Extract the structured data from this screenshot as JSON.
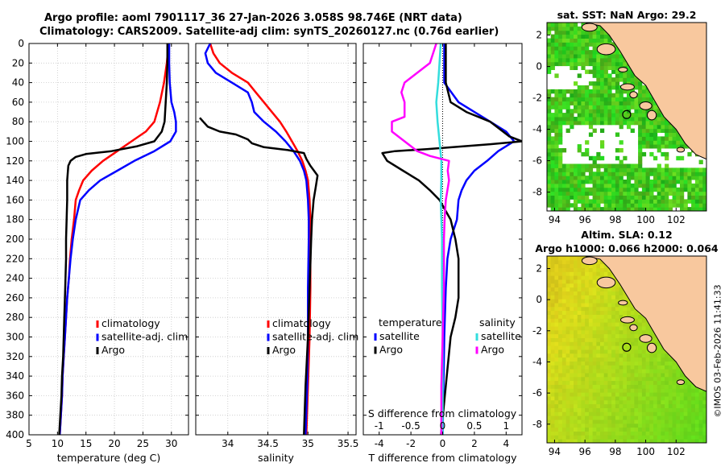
{
  "header": {
    "line1": "Argo profile: aoml 7901117_36 27-Jan-2026 3.058S 98.746E (NRT data)",
    "line2": "Climatology: CARS2009. Satellite-adj clim: synTS_20260127.nc (0.76d earlier)"
  },
  "colors": {
    "climatology": "#ff0000",
    "satellite": "#0000ff",
    "argo": "#000000",
    "sat_salinity": "#33dddd",
    "argo_salinity_diff": "#ff00ff",
    "land": "#f8c89e",
    "sst_cell": "#33cc33",
    "sla_cell": "#66dd33",
    "coast": "#000000"
  },
  "chart_data": [
    {
      "name": "temperature-panel",
      "type": "line",
      "xlabel": "temperature (deg C)",
      "ylabel": "",
      "xlim": [
        5,
        33
      ],
      "ylim": [
        400,
        0
      ],
      "xticks": [
        5,
        10,
        15,
        20,
        25,
        30
      ],
      "yticks": [
        0,
        20,
        40,
        60,
        80,
        100,
        120,
        140,
        160,
        180,
        200,
        220,
        240,
        260,
        280,
        300,
        320,
        340,
        360,
        380,
        400
      ],
      "grid": true,
      "legend_position": "bottom-right",
      "series": [
        {
          "name": "climatology",
          "color": "#ff0000",
          "points": [
            [
              29.5,
              0
            ],
            [
              29.2,
              20
            ],
            [
              28.7,
              40
            ],
            [
              28.0,
              60
            ],
            [
              27.0,
              80
            ],
            [
              25.5,
              90
            ],
            [
              23.0,
              100
            ],
            [
              20.5,
              110
            ],
            [
              18.0,
              120
            ],
            [
              16.0,
              130
            ],
            [
              14.5,
              140
            ],
            [
              13.8,
              150
            ],
            [
              13.2,
              160
            ],
            [
              12.9,
              180
            ],
            [
              12.5,
              200
            ],
            [
              12.2,
              220
            ],
            [
              12.0,
              240
            ],
            [
              11.7,
              260
            ],
            [
              11.5,
              280
            ],
            [
              11.3,
              300
            ],
            [
              11.1,
              320
            ],
            [
              10.9,
              340
            ],
            [
              10.8,
              360
            ],
            [
              10.6,
              380
            ],
            [
              10.4,
              400
            ]
          ]
        },
        {
          "name": "satellite-adj. clim",
          "color": "#0000ff",
          "points": [
            [
              29.6,
              0
            ],
            [
              29.6,
              20
            ],
            [
              29.7,
              40
            ],
            [
              30.0,
              60
            ],
            [
              30.5,
              70
            ],
            [
              30.8,
              80
            ],
            [
              30.8,
              90
            ],
            [
              29.8,
              100
            ],
            [
              27.0,
              110
            ],
            [
              23.5,
              120
            ],
            [
              20.5,
              130
            ],
            [
              17.5,
              140
            ],
            [
              15.5,
              150
            ],
            [
              14.0,
              160
            ],
            [
              13.2,
              180
            ],
            [
              12.7,
              200
            ],
            [
              12.3,
              220
            ],
            [
              12.0,
              240
            ],
            [
              11.7,
              260
            ],
            [
              11.5,
              280
            ],
            [
              11.3,
              300
            ],
            [
              11.1,
              320
            ],
            [
              10.9,
              340
            ],
            [
              10.8,
              360
            ],
            [
              10.6,
              380
            ],
            [
              10.4,
              400
            ]
          ]
        },
        {
          "name": "Argo",
          "color": "#000000",
          "points": [
            [
              29.3,
              0
            ],
            [
              29.3,
              20
            ],
            [
              29.2,
              40
            ],
            [
              29.0,
              60
            ],
            [
              28.8,
              80
            ],
            [
              28.3,
              90
            ],
            [
              27.0,
              100
            ],
            [
              24.0,
              105
            ],
            [
              19.5,
              110
            ],
            [
              15.0,
              113
            ],
            [
              13.2,
              116
            ],
            [
              12.3,
              120
            ],
            [
              11.9,
              125
            ],
            [
              11.7,
              140
            ],
            [
              11.7,
              160
            ],
            [
              11.6,
              180
            ],
            [
              11.5,
              200
            ],
            [
              11.5,
              220
            ],
            [
              11.4,
              240
            ],
            [
              11.3,
              260
            ],
            [
              11.2,
              280
            ],
            [
              11.1,
              300
            ],
            [
              11.0,
              320
            ],
            [
              10.8,
              340
            ],
            [
              10.7,
              360
            ],
            [
              10.5,
              380
            ],
            [
              10.3,
              400
            ]
          ]
        }
      ]
    },
    {
      "name": "salinity-panel",
      "type": "line",
      "xlabel": "salinity",
      "xlim": [
        33.6,
        35.6
      ],
      "ylim": [
        400,
        0
      ],
      "xticks": [
        34,
        34.5,
        35,
        35.5
      ],
      "grid": true,
      "legend_position": "bottom-right",
      "series": [
        {
          "name": "climatology",
          "color": "#ff0000",
          "points": [
            [
              33.78,
              0
            ],
            [
              33.82,
              10
            ],
            [
              33.9,
              20
            ],
            [
              34.05,
              30
            ],
            [
              34.25,
              40
            ],
            [
              34.35,
              50
            ],
            [
              34.45,
              60
            ],
            [
              34.55,
              70
            ],
            [
              34.65,
              80
            ],
            [
              34.73,
              90
            ],
            [
              34.8,
              100
            ],
            [
              34.87,
              110
            ],
            [
              34.93,
              120
            ],
            [
              34.97,
              130
            ],
            [
              35.0,
              140
            ],
            [
              35.02,
              160
            ],
            [
              35.03,
              180
            ],
            [
              35.03,
              200
            ],
            [
              35.03,
              250
            ],
            [
              35.02,
              300
            ],
            [
              35.0,
              350
            ],
            [
              34.98,
              400
            ]
          ]
        },
        {
          "name": "satellite-adj. clim",
          "color": "#0000ff",
          "points": [
            [
              33.78,
              0
            ],
            [
              33.72,
              10
            ],
            [
              33.75,
              20
            ],
            [
              33.85,
              30
            ],
            [
              34.05,
              40
            ],
            [
              34.25,
              50
            ],
            [
              34.3,
              60
            ],
            [
              34.33,
              70
            ],
            [
              34.45,
              80
            ],
            [
              34.6,
              90
            ],
            [
              34.72,
              100
            ],
            [
              34.82,
              110
            ],
            [
              34.9,
              120
            ],
            [
              34.95,
              130
            ],
            [
              34.98,
              140
            ],
            [
              35.0,
              160
            ],
            [
              35.01,
              180
            ],
            [
              35.01,
              200
            ],
            [
              35.0,
              250
            ],
            [
              35.0,
              300
            ],
            [
              34.99,
              350
            ],
            [
              34.97,
              400
            ]
          ]
        },
        {
          "name": "Argo",
          "color": "#000000",
          "points": [
            [
              33.65,
              76
            ],
            [
              33.75,
              85
            ],
            [
              33.9,
              90
            ],
            [
              34.1,
              93
            ],
            [
              34.25,
              98
            ],
            [
              34.3,
              102
            ],
            [
              34.45,
              106
            ],
            [
              34.75,
              109
            ],
            [
              34.95,
              112
            ],
            [
              34.98,
              118
            ],
            [
              35.03,
              125
            ],
            [
              35.12,
              135
            ],
            [
              35.1,
              145
            ],
            [
              35.07,
              160
            ],
            [
              35.05,
              180
            ],
            [
              35.04,
              200
            ],
            [
              35.02,
              250
            ],
            [
              35.0,
              300
            ],
            [
              34.97,
              350
            ],
            [
              34.95,
              400
            ]
          ]
        }
      ]
    },
    {
      "name": "difference-panel",
      "type": "line",
      "xlabel": "T difference from climatology",
      "top_xlabel": "S difference from climatology",
      "xlim": [
        -5,
        5
      ],
      "top_xlim": [
        -1.25,
        1.25
      ],
      "ylim": [
        400,
        0
      ],
      "xticks": [
        -4,
        -2,
        0,
        2,
        4
      ],
      "top_xticks": [
        -1,
        -0.5,
        0,
        0.5,
        1
      ],
      "top_xticklabels": [
        "-1",
        "-0.5",
        "0",
        "0.5",
        "1"
      ],
      "grid": false,
      "legend_left_title": "temperature",
      "legend_right_title": "salinity",
      "series": [
        {
          "name": "satellite",
          "group": "temperature",
          "color": "#0000ff",
          "points": [
            [
              0.1,
              0
            ],
            [
              0.1,
              20
            ],
            [
              0.1,
              40
            ],
            [
              1.0,
              60
            ],
            [
              2.0,
              70
            ],
            [
              3.0,
              80
            ],
            [
              4.0,
              90
            ],
            [
              4.5,
              100
            ],
            [
              3.5,
              110
            ],
            [
              2.8,
              120
            ],
            [
              2.0,
              130
            ],
            [
              1.5,
              140
            ],
            [
              1.2,
              150
            ],
            [
              1.0,
              160
            ],
            [
              0.9,
              180
            ],
            [
              0.5,
              200
            ],
            [
              0.3,
              220
            ],
            [
              0.2,
              250
            ],
            [
              0.1,
              300
            ],
            [
              0.05,
              350
            ],
            [
              0.0,
              400
            ]
          ]
        },
        {
          "name": "Argo",
          "group": "temperature",
          "color": "#000000",
          "points": [
            [
              0.2,
              0
            ],
            [
              0.2,
              40
            ],
            [
              0.5,
              60
            ],
            [
              1.5,
              70
            ],
            [
              3.0,
              80
            ],
            [
              3.8,
              90
            ],
            [
              4.2,
              95
            ],
            [
              5.0,
              100
            ],
            [
              3.0,
              103
            ],
            [
              -1.0,
              108
            ],
            [
              -3.0,
              110
            ],
            [
              -3.8,
              112
            ],
            [
              -3.5,
              120
            ],
            [
              -2.5,
              130
            ],
            [
              -1.5,
              140
            ],
            [
              -0.8,
              150
            ],
            [
              -0.2,
              160
            ],
            [
              0.5,
              180
            ],
            [
              0.8,
              200
            ],
            [
              1.0,
              220
            ],
            [
              1.0,
              240
            ],
            [
              1.0,
              260
            ],
            [
              0.8,
              280
            ],
            [
              0.5,
              300
            ],
            [
              0.2,
              350
            ],
            [
              -0.1,
              400
            ]
          ]
        },
        {
          "name": "satellite",
          "group": "salinity",
          "color": "#33dddd",
          "points": [
            [
              -0.03,
              0
            ],
            [
              -0.05,
              20
            ],
            [
              -0.07,
              40
            ],
            [
              -0.1,
              60
            ],
            [
              -0.08,
              80
            ],
            [
              -0.05,
              100
            ],
            [
              -0.02,
              120
            ],
            [
              -0.02,
              140
            ],
            [
              -0.03,
              160
            ],
            [
              -0.02,
              180
            ],
            [
              -0.01,
              200
            ],
            [
              -0.01,
              250
            ],
            [
              0.0,
              300
            ],
            [
              0.0,
              400
            ]
          ]
        },
        {
          "name": "Argo",
          "group": "salinity",
          "color": "#ff00ff",
          "points": [
            [
              -0.1,
              0
            ],
            [
              -0.2,
              20
            ],
            [
              -0.4,
              30
            ],
            [
              -0.6,
              40
            ],
            [
              -0.65,
              50
            ],
            [
              -0.6,
              60
            ],
            [
              -0.6,
              75
            ],
            [
              -0.8,
              80
            ],
            [
              -0.8,
              90
            ],
            [
              -0.6,
              100
            ],
            [
              -0.4,
              110
            ],
            [
              -0.2,
              115
            ],
            [
              0.1,
              120
            ],
            [
              0.08,
              130
            ],
            [
              0.1,
              140
            ],
            [
              0.05,
              160
            ],
            [
              0.03,
              180
            ],
            [
              0.02,
              200
            ],
            [
              0.02,
              250
            ],
            [
              0.0,
              300
            ],
            [
              -0.02,
              350
            ],
            [
              -0.02,
              400
            ]
          ]
        }
      ]
    },
    {
      "name": "sst-map",
      "type": "heatmap",
      "title": "sat. SST: NaN Argo: 29.2",
      "xlim": [
        93.5,
        104
      ],
      "ylim": [
        -9.2,
        2.8
      ],
      "xticks": [
        94,
        96,
        98,
        100,
        102
      ],
      "yticks": [
        2,
        0,
        -2,
        -4,
        -6,
        -8
      ]
    },
    {
      "name": "sla-map",
      "type": "heatmap",
      "title_line1": "Altim. SLA: 0.12",
      "title_line2": "Argo h1000: 0.066 h2000: 0.064",
      "xlim": [
        93.5,
        104
      ],
      "ylim": [
        -9.2,
        2.8
      ],
      "xticks": [
        94,
        96,
        98,
        100,
        102
      ],
      "yticks": [
        2,
        0,
        -2,
        -4,
        -6,
        -8
      ]
    }
  ],
  "legend": {
    "temperature_panel": [
      "climatology",
      "satellite-adj. clim",
      "Argo"
    ],
    "salinity_panel": [
      "climatology",
      "satellite-adj. clim",
      "Argo"
    ],
    "difference_panel_left": [
      "satellite",
      "Argo"
    ],
    "difference_panel_right": [
      "satellite",
      "Argo"
    ]
  },
  "footer": {
    "credit": "©IMOS 03-Feb-2026 11:41:33"
  }
}
